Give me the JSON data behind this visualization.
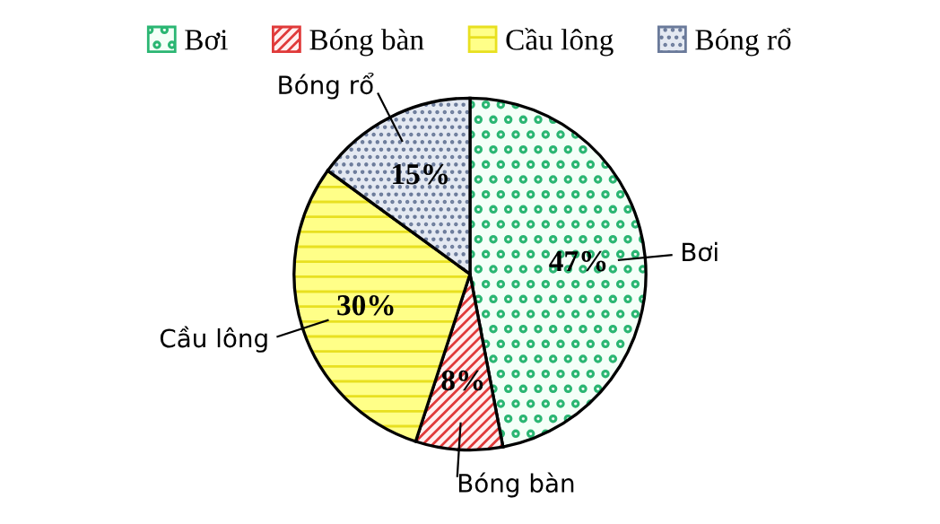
{
  "chart_data": {
    "type": "pie",
    "categories": [
      "Bơi",
      "Bóng bàn",
      "Cầu lông",
      "Bóng rổ"
    ],
    "values": [
      47,
      8,
      30,
      15
    ],
    "colors": [
      "#2bb673",
      "#e03a3a",
      "#e8e020",
      "#6a7a9a"
    ],
    "value_labels": [
      "47%",
      "8%",
      "30%",
      "15%"
    ],
    "legend": "top"
  }
}
